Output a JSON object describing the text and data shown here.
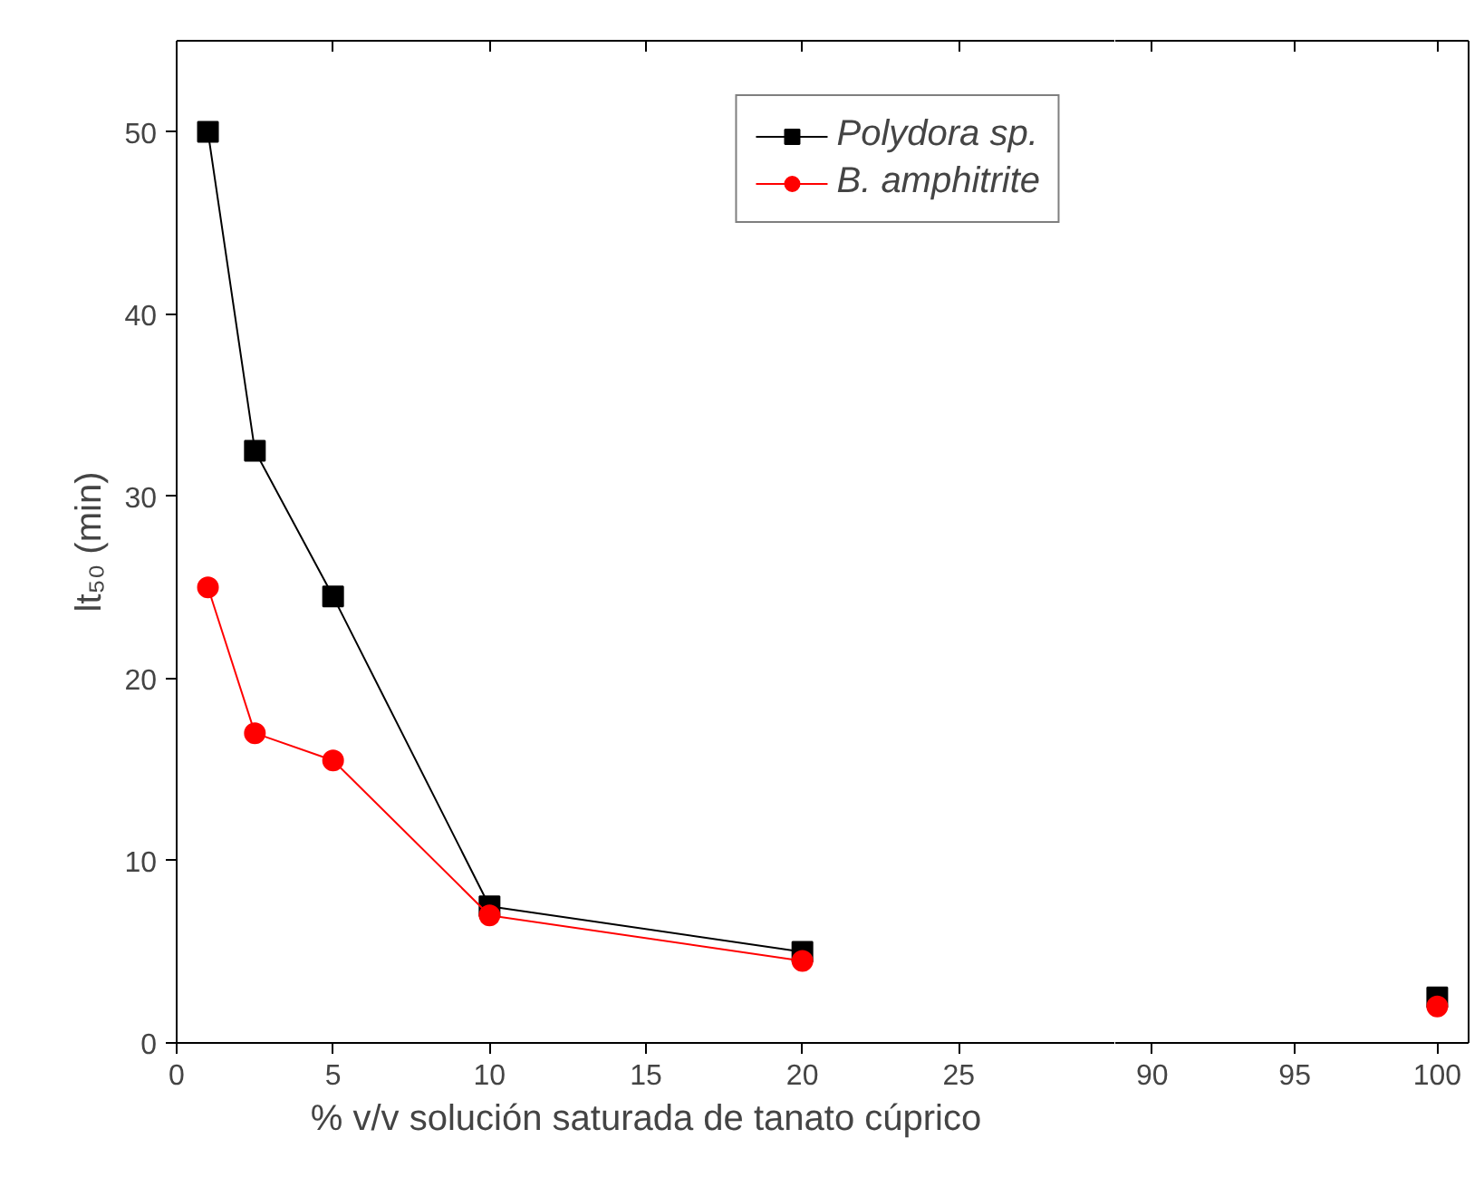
{
  "chart_data": [
    {
      "type": "line",
      "xlabel": "% v/v solución saturada de tanato cúprico",
      "ylabel": "lt₅₀ (min)",
      "xlim": [
        0,
        30
      ],
      "xticks": [
        0,
        5,
        10,
        15,
        20,
        25
      ],
      "ylim": [
        0,
        55
      ],
      "yticks": [
        0,
        10,
        20,
        30,
        40,
        50
      ],
      "grid": false,
      "legend": "top right",
      "line_style": "solid",
      "x": [
        1,
        2.5,
        5,
        10,
        20
      ],
      "series": [
        {
          "name": "Polydora sp.",
          "color": "#000000",
          "marker": "square",
          "values": [
            50,
            32.5,
            24.5,
            7.5,
            5
          ]
        },
        {
          "name": "B. amphitrite",
          "color": "#ff0000",
          "marker": "circle",
          "values": [
            25,
            17,
            15.5,
            7,
            4.5
          ]
        }
      ]
    },
    {
      "type": "line",
      "xlim": [
        88.7,
        101.1
      ],
      "xticks": [
        90,
        95,
        100
      ],
      "ylim": [
        0,
        55
      ],
      "tick_labels": "x",
      "grid": false,
      "line_style": "solid",
      "x": [
        100
      ],
      "series": [
        {
          "color": "#000000",
          "marker": "square",
          "values": [
            2.5
          ]
        },
        {
          "color": "#ff0000",
          "marker": "circle",
          "values": [
            2
          ]
        }
      ]
    }
  ]
}
